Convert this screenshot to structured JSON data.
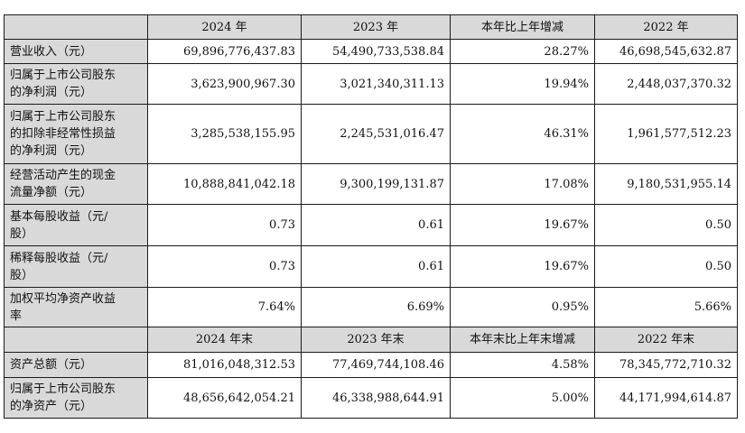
{
  "headers_period": [
    "",
    "2024 年",
    "2023 年",
    "本年比上年增减",
    "2022 年"
  ],
  "rows_period": [
    {
      "label": "营业收入（元）",
      "v2024": "69,896,776,437.83",
      "v2023": "54,490,733,538.84",
      "change": "28.27%",
      "v2022": "46,698,545,632.87"
    },
    {
      "label": "归属于上市公司股东\n的净利润（元）",
      "v2024": "3,623,900,967.30",
      "v2023": "3,021,340,311.13",
      "change": "19.94%",
      "v2022": "2,448,037,370.32"
    },
    {
      "label": "归属于上市公司股东\n的扣除非经常性损益\n的净利润（元）",
      "v2024": "3,285,538,155.95",
      "v2023": "2,245,531,016.47",
      "change": "46.31%",
      "v2022": "1,961,577,512.23"
    },
    {
      "label": "经营活动产生的现金\n流量净额（元）",
      "v2024": "10,888,841,042.18",
      "v2023": "9,300,199,131.87",
      "change": "17.08%",
      "v2022": "9,180,531,955.14"
    },
    {
      "label": "基本每股收益（元/\n股）",
      "v2024": "0.73",
      "v2023": "0.61",
      "change": "19.67%",
      "v2022": "0.50"
    },
    {
      "label": "稀释每股收益（元/\n股）",
      "v2024": "0.73",
      "v2023": "0.61",
      "change": "19.67%",
      "v2022": "0.50"
    },
    {
      "label": "加权平均净资产收益\n率",
      "v2024": "7.64%",
      "v2023": "6.69%",
      "change": "0.95%",
      "v2022": "5.66%"
    }
  ],
  "headers_yearend": [
    "",
    "2024 年末",
    "2023 年末",
    "本年末比上年末增减",
    "2022 年末"
  ],
  "rows_yearend": [
    {
      "label": "资产总额（元）",
      "v2024": "81,016,048,312.53",
      "v2023": "77,469,744,108.46",
      "change": "4.58%",
      "v2022": "78,345,772,710.32"
    },
    {
      "label": "归属于上市公司股东\n的净资产（元）",
      "v2024": "48,656,642,054.21",
      "v2023": "46,338,988,644.91",
      "change": "5.00%",
      "v2022": "44,171,994,614.87"
    }
  ]
}
